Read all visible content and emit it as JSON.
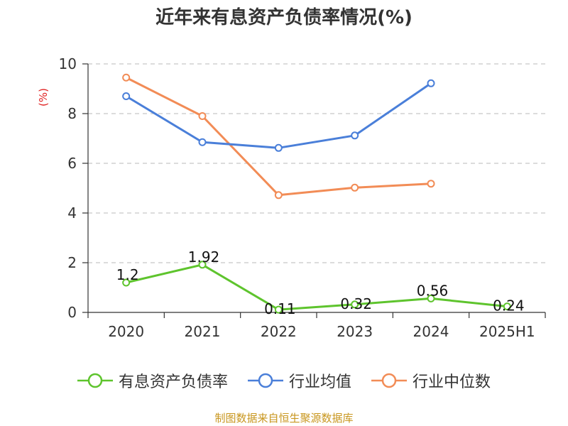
{
  "title": "近年来有息资产负债率情况(%)",
  "y_unit": "(%)",
  "source": "制图数据来自恒生聚源数据库",
  "chart_data": {
    "type": "line",
    "title": "近年来有息资产负债率情况(%)",
    "categories": [
      "2020",
      "2021",
      "2022",
      "2023",
      "2024",
      "2025H1"
    ],
    "ylim": [
      0,
      10
    ],
    "yticks": [
      0,
      2,
      4,
      6,
      8,
      10
    ],
    "grid": true,
    "legend_position": "bottom",
    "series": [
      {
        "name": "有息资产负债率",
        "color": "#5ec42d",
        "values": [
          1.2,
          1.92,
          0.11,
          0.32,
          0.56,
          0.24
        ],
        "labels": [
          "1.2",
          "1.92",
          "0.11",
          "0.32",
          "0.56",
          "0.24"
        ]
      },
      {
        "name": "行业均值",
        "color": "#4a7fd9",
        "values": [
          8.7,
          6.85,
          6.62,
          7.12,
          9.22,
          null
        ]
      },
      {
        "name": "行业中位数",
        "color": "#f28c56",
        "values": [
          9.45,
          7.9,
          4.72,
          5.02,
          5.18,
          null
        ]
      }
    ]
  }
}
